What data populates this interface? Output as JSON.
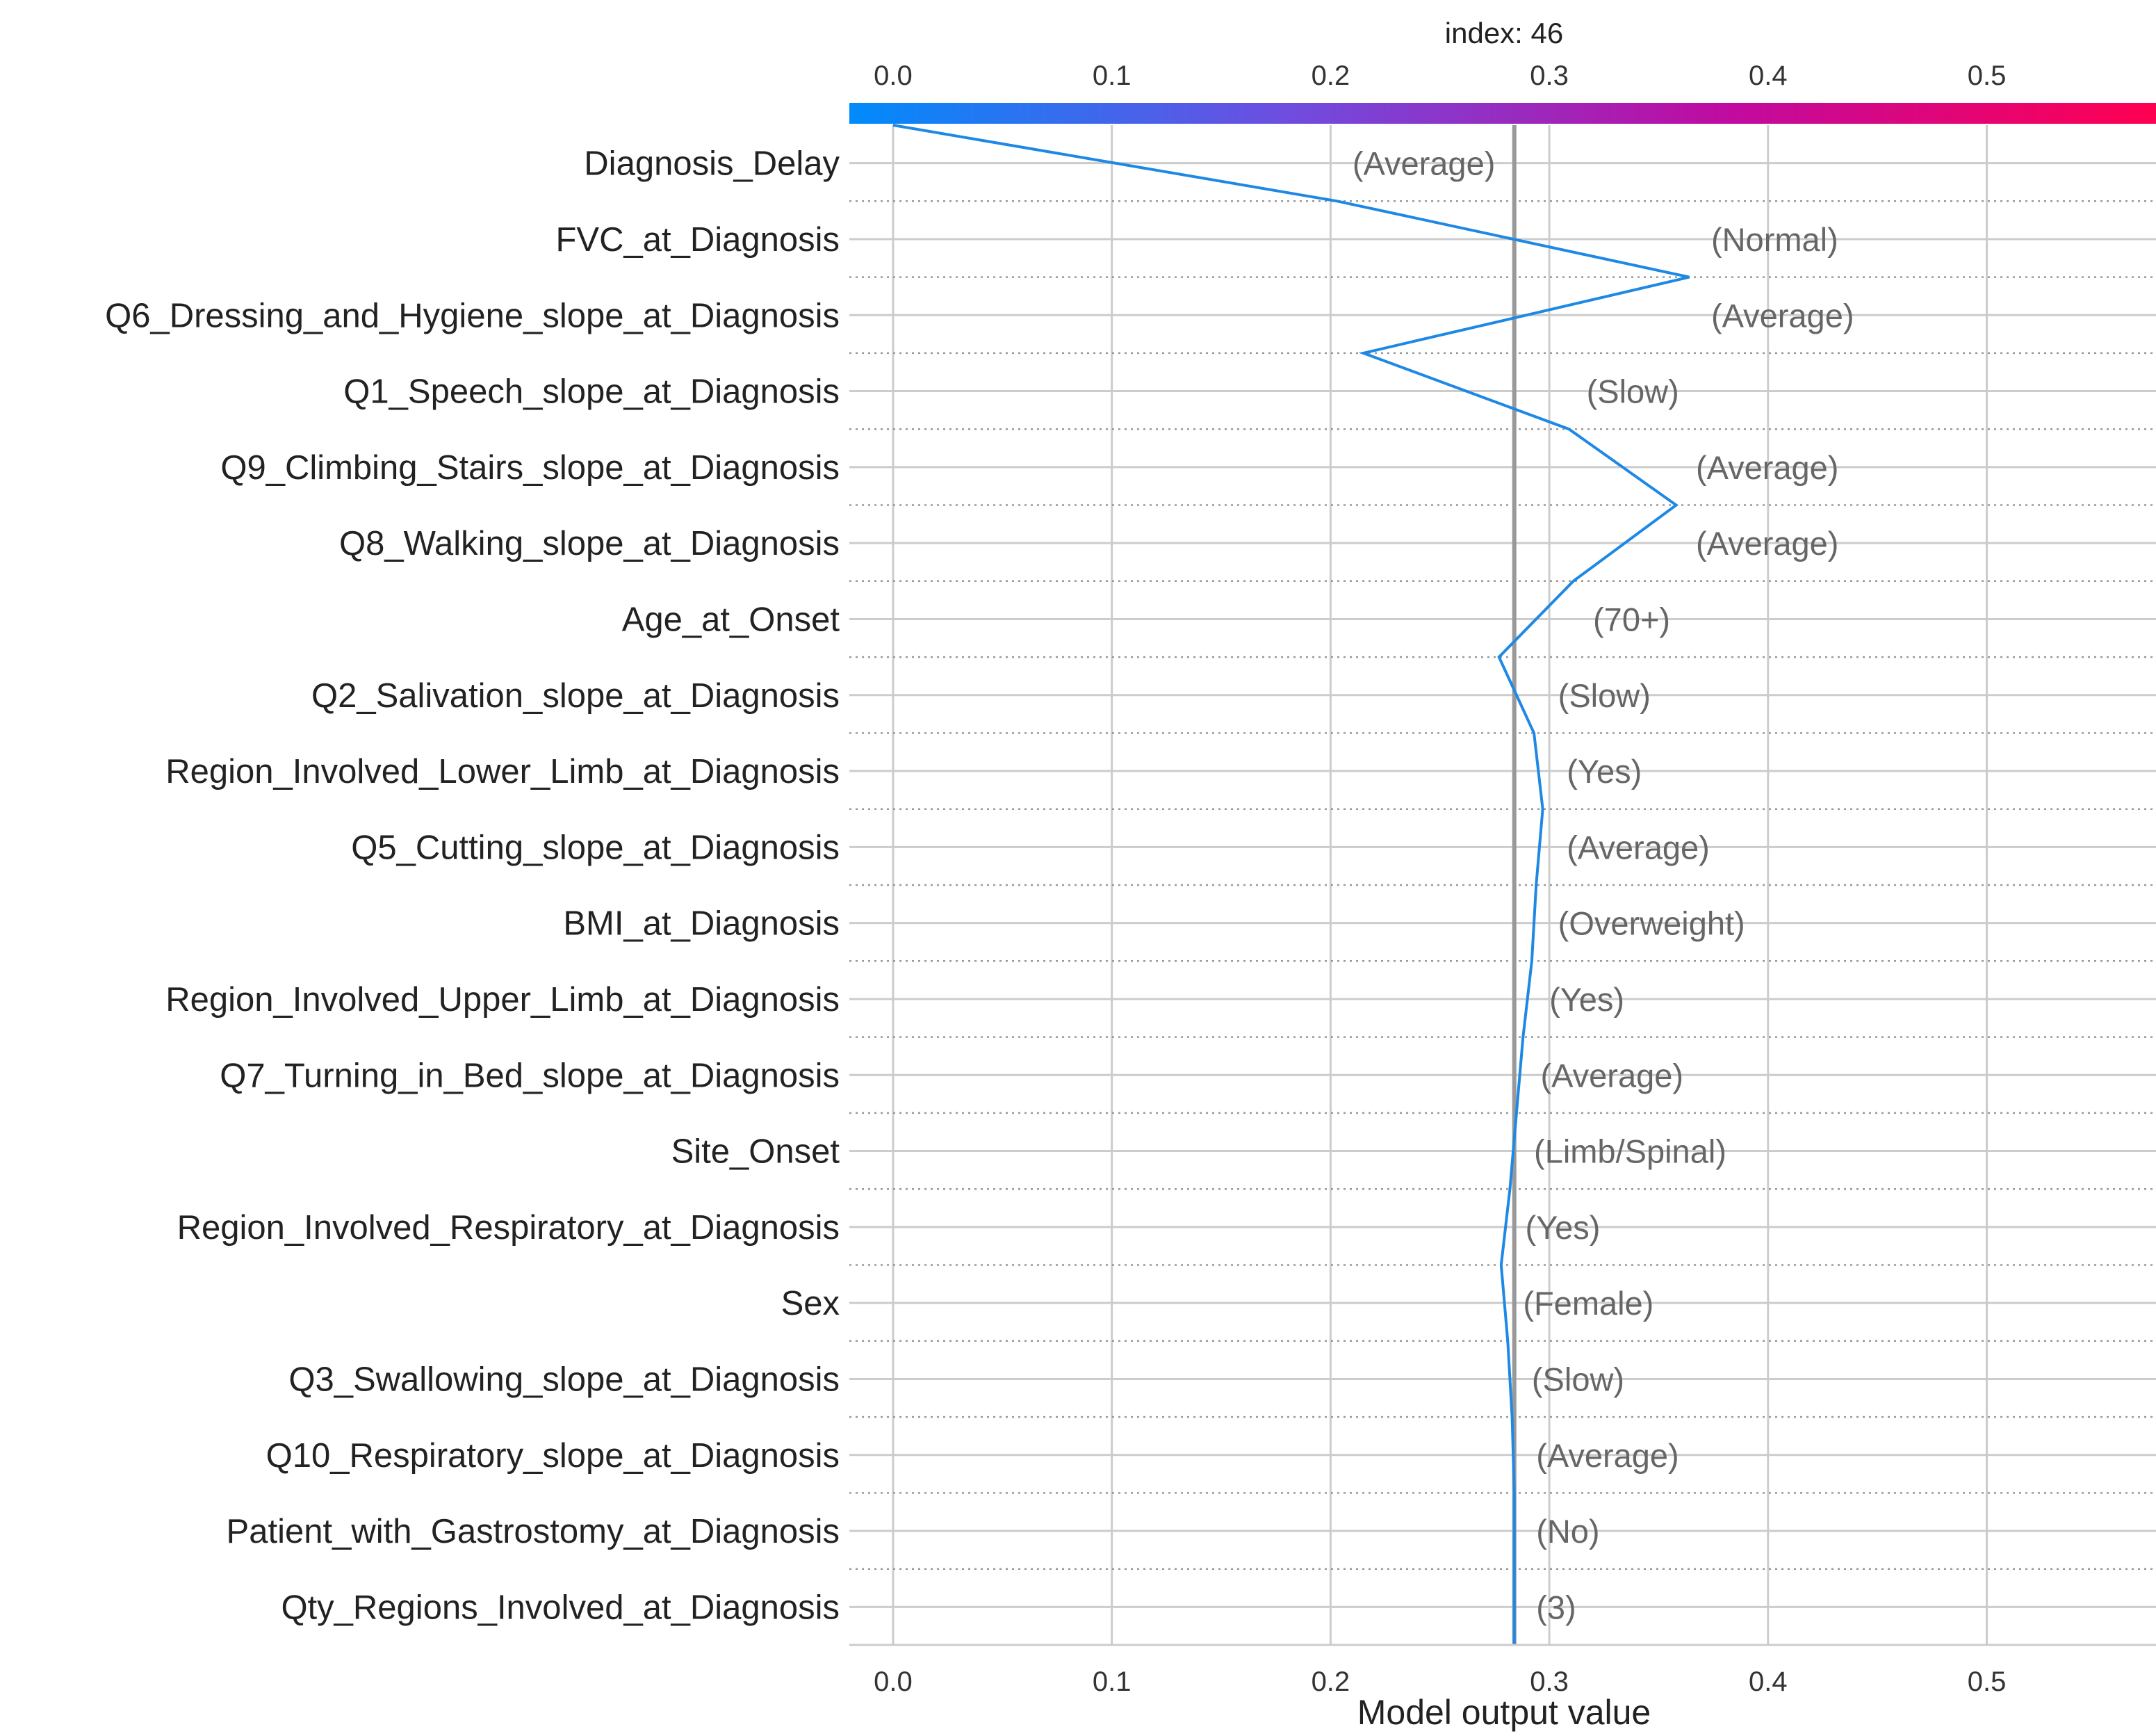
{
  "chart_data": {
    "type": "line",
    "title": "index: 46",
    "xlabel": "Model output value",
    "xlim": [
      -0.02,
      0.578
    ],
    "xticks": [
      0.0,
      0.1,
      0.2,
      0.3,
      0.4,
      0.5
    ],
    "xtick_labels": [
      "0.0",
      "0.1",
      "0.2",
      "0.3",
      "0.4",
      "0.5"
    ],
    "base_value": 0.284,
    "grid": true,
    "colorbar": {
      "range": [
        0.0,
        0.578
      ],
      "colors": [
        "#008bfb",
        "#6d4ee0",
        "#c00ba0",
        "#ff0051"
      ]
    },
    "line_color": "#1e88e5",
    "features": [
      "Diagnosis_Delay",
      "FVC_at_Diagnosis",
      "Q6_Dressing_and_Hygiene_slope_at_Diagnosis",
      "Q1_Speech_slope_at_Diagnosis",
      "Q9_Climbing_Stairs_slope_at_Diagnosis",
      "Q8_Walking_slope_at_Diagnosis",
      "Age_at_Onset",
      "Q2_Salivation_slope_at_Diagnosis",
      "Region_Involved_Lower_Limb_at_Diagnosis",
      "Q5_Cutting_slope_at_Diagnosis",
      "BMI_at_Diagnosis",
      "Region_Involved_Upper_Limb_at_Diagnosis",
      "Q7_Turning_in_Bed_slope_at_Diagnosis",
      "Site_Onset",
      "Region_Involved_Respiratory_at_Diagnosis",
      "Sex",
      "Q3_Swallowing_slope_at_Diagnosis",
      "Q10_Respiratory_slope_at_Diagnosis",
      "Patient_with_Gastrostomy_at_Diagnosis",
      "Qty_Regions_Involved_at_Diagnosis"
    ],
    "feature_values": [
      "(Average)",
      "(Normal)",
      "(Average)",
      "(Slow)",
      "(Average)",
      "(Average)",
      "(70+)",
      "(Slow)",
      "(Yes)",
      "(Average)",
      "(Overweight)",
      "(Yes)",
      "(Average)",
      "(Limb/Spinal)",
      "(Yes)",
      "(Female)",
      "(Slow)",
      "(Average)",
      "(No)",
      "(3)"
    ],
    "path": [
      0.0,
      0.203,
      0.364,
      0.215,
      0.309,
      0.358,
      0.311,
      0.277,
      0.293,
      0.297,
      0.294,
      0.292,
      0.288,
      0.285,
      0.282,
      0.278,
      0.281,
      0.283,
      0.284,
      0.284,
      0.284
    ],
    "value_label_x": [
      0.21,
      0.374,
      0.374,
      0.317,
      0.367,
      0.367,
      0.32,
      0.304,
      0.308,
      0.308,
      0.304,
      0.3,
      0.296,
      0.293,
      0.289,
      0.288,
      0.292,
      0.294,
      0.294,
      0.294
    ]
  }
}
